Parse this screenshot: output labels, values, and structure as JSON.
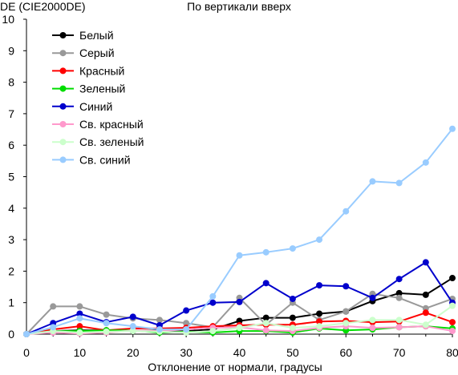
{
  "chart_data": {
    "type": "line",
    "title": "По вертикали вверх",
    "ylabel": "DE (CIE2000DE)",
    "xlabel": "Отклонение от нормали, градусы",
    "xlim": [
      0,
      80
    ],
    "ylim": [
      0,
      10
    ],
    "x": [
      0,
      5,
      10,
      15,
      20,
      25,
      30,
      35,
      40,
      45,
      50,
      55,
      60,
      65,
      70,
      75,
      80
    ],
    "x_ticks": [
      "0",
      "10",
      "20",
      "30",
      "40",
      "50",
      "60",
      "70",
      "80"
    ],
    "y_ticks": [
      "0",
      "1",
      "2",
      "3",
      "4",
      "5",
      "6",
      "7",
      "8",
      "9",
      "10"
    ],
    "grid": false,
    "legend_position": "top-left",
    "series": [
      {
        "name": "Белый",
        "color": "#000000",
        "values": [
          0,
          0.1,
          0.12,
          0.12,
          0.1,
          0.12,
          0.1,
          0.15,
          0.42,
          0.52,
          0.52,
          0.65,
          0.72,
          1.05,
          1.3,
          1.25,
          1.78
        ]
      },
      {
        "name": "Серый",
        "color": "#999999",
        "values": [
          0,
          0.88,
          0.88,
          0.62,
          0.5,
          0.45,
          0.35,
          0.22,
          1.15,
          0.3,
          1.0,
          0.45,
          0.72,
          1.28,
          1.15,
          0.82,
          1.12
        ]
      },
      {
        "name": "Красный",
        "color": "#ff0000",
        "values": [
          0,
          0.15,
          0.25,
          0.12,
          0.18,
          0.18,
          0.2,
          0.25,
          0.28,
          0.3,
          0.3,
          0.4,
          0.42,
          0.38,
          0.4,
          0.68,
          0.38
        ]
      },
      {
        "name": "Зеленый",
        "color": "#00dd00",
        "values": [
          0,
          0.1,
          0.1,
          0.12,
          0.12,
          0.05,
          0.08,
          0.05,
          0.1,
          0.1,
          0.05,
          0.18,
          0.12,
          0.15,
          0.22,
          0.25,
          0.18
        ]
      },
      {
        "name": "Синий",
        "color": "#0000cc",
        "values": [
          0,
          0.35,
          0.65,
          0.38,
          0.55,
          0.28,
          0.75,
          1.0,
          1.02,
          1.62,
          1.12,
          1.55,
          1.52,
          1.15,
          1.75,
          2.28,
          1.0
        ]
      },
      {
        "name": "Св. красный",
        "color": "#ff99cc",
        "values": [
          0,
          0.05,
          0.02,
          0.05,
          0.12,
          0.1,
          0.15,
          0.2,
          0.22,
          0.12,
          0.1,
          0.2,
          0.25,
          0.2,
          0.22,
          0.25,
          0.1
        ]
      },
      {
        "name": "Св. зеленый",
        "color": "#ccffcc",
        "values": [
          0,
          0.1,
          0.05,
          0.08,
          0.1,
          0.08,
          0.05,
          0.1,
          0.2,
          0.35,
          0.2,
          0.25,
          0.35,
          0.45,
          0.45,
          0.3,
          0.9
        ]
      },
      {
        "name": "Св. синий",
        "color": "#99ccff",
        "values": [
          0,
          0.22,
          0.5,
          0.35,
          0.25,
          0.15,
          0.15,
          1.2,
          2.5,
          2.6,
          2.72,
          3.0,
          3.9,
          4.85,
          4.8,
          5.45,
          6.52
        ]
      }
    ]
  }
}
